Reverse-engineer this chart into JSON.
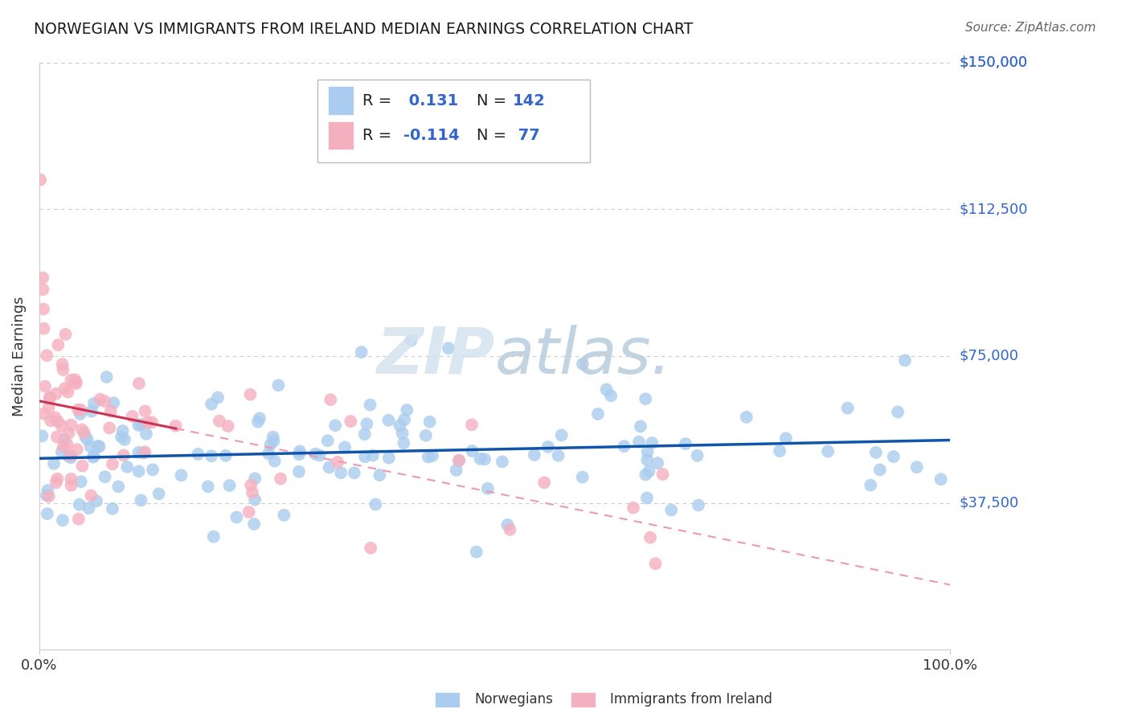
{
  "title": "NORWEGIAN VS IMMIGRANTS FROM IRELAND MEDIAN EARNINGS CORRELATION CHART",
  "source": "Source: ZipAtlas.com",
  "ylabel": "Median Earnings",
  "xlim": [
    0,
    1.0
  ],
  "ylim": [
    0,
    150000
  ],
  "ytick_vals": [
    37500,
    75000,
    112500,
    150000
  ],
  "ytick_labels": [
    "$37,500",
    "$75,000",
    "$112,500",
    "$150,000"
  ],
  "r_blue": 0.131,
  "n_blue": 142,
  "r_pink": -0.114,
  "n_pink": 77,
  "blue_scatter_color": "#aaccee",
  "blue_line_color": "#1155aa",
  "pink_scatter_color": "#f5b0c0",
  "pink_line_color": "#cc3355",
  "pink_line_solid_color": "#cc3355",
  "pink_line_dash_color": "#ee99aa",
  "title_color": "#1a1a1a",
  "source_color": "#666666",
  "ylabel_color": "#333333",
  "ytick_color": "#3366cc",
  "watermark_color_zip": "#c8d8e8",
  "watermark_color_atlas": "#aac8e0",
  "background_color": "#ffffff",
  "grid_color": "#cccccc",
  "legend_text_color": "#3366cc",
  "legend_label_color": "#222222",
  "figsize": [
    14.06,
    8.92
  ],
  "dpi": 100
}
